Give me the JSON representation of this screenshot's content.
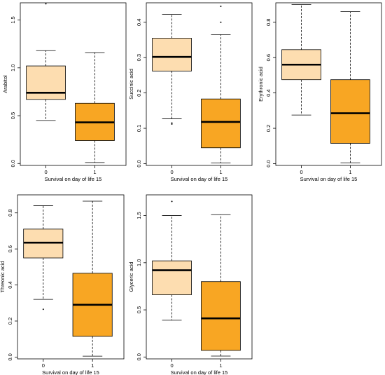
{
  "colors": {
    "group0": "#FDDDB0",
    "group1": "#F8A623",
    "stroke": "#000000"
  },
  "chart_data": [
    {
      "type": "box",
      "ylabel": "Arabitol",
      "xlabel": "Survival on day of life 15",
      "categories": [
        "0",
        "1"
      ],
      "yticks": [
        "0.0",
        "0.5",
        "1.0",
        "1.5"
      ],
      "ylim": [
        -0.02,
        1.68
      ],
      "boxes": [
        {
          "group": "0",
          "whisker_low": 0.45,
          "q1": 0.67,
          "median": 0.74,
          "q3": 1.02,
          "whisker_high": 1.18,
          "outliers": [
            1.67
          ]
        },
        {
          "group": "1",
          "whisker_low": 0.01,
          "q1": 0.24,
          "median": 0.43,
          "q3": 0.63,
          "whisker_high": 1.16,
          "outliers": []
        }
      ]
    },
    {
      "type": "box",
      "ylabel": "Succinic acid",
      "xlabel": "Survival on day of life 15",
      "categories": [
        "0",
        "1"
      ],
      "yticks": [
        "0.0",
        "0.1",
        "0.2",
        "0.3",
        "0.4"
      ],
      "ylim": [
        -0.005,
        0.455
      ],
      "boxes": [
        {
          "group": "0",
          "whisker_low": 0.127,
          "q1": 0.262,
          "median": 0.302,
          "q3": 0.355,
          "whisker_high": 0.422,
          "outliers": [
            0.115,
            0.112
          ]
        },
        {
          "group": "1",
          "whisker_low": 0.002,
          "q1": 0.045,
          "median": 0.118,
          "q3": 0.183,
          "whisker_high": 0.365,
          "outliers": [
            0.445,
            0.4
          ]
        }
      ]
    },
    {
      "type": "box",
      "ylabel": "Erythronic acid",
      "xlabel": "Survival on day of life 15",
      "categories": [
        "0",
        "1"
      ],
      "yticks": [
        "0.0",
        "0.2",
        "0.4",
        "0.6",
        "0.8"
      ],
      "ylim": [
        -0.01,
        0.91
      ],
      "boxes": [
        {
          "group": "0",
          "whisker_low": 0.275,
          "q1": 0.475,
          "median": 0.56,
          "q3": 0.645,
          "whisker_high": 0.9,
          "outliers": []
        },
        {
          "group": "1",
          "whisker_low": 0.005,
          "q1": 0.115,
          "median": 0.285,
          "q3": 0.475,
          "whisker_high": 0.86,
          "outliers": []
        }
      ]
    },
    {
      "type": "box",
      "ylabel": "Threonic acid",
      "xlabel": "Survival on day of life 15",
      "categories": [
        "0",
        "1"
      ],
      "yticks": [
        "0.0",
        "0.2",
        "0.4",
        "0.6",
        "0.8"
      ],
      "ylim": [
        -0.01,
        0.9
      ],
      "boxes": [
        {
          "group": "0",
          "whisker_low": 0.32,
          "q1": 0.55,
          "median": 0.635,
          "q3": 0.71,
          "whisker_high": 0.84,
          "outliers": [
            0.265
          ]
        },
        {
          "group": "1",
          "whisker_low": 0.005,
          "q1": 0.115,
          "median": 0.29,
          "q3": 0.465,
          "whisker_high": 0.865,
          "outliers": []
        }
      ]
    },
    {
      "type": "box",
      "ylabel": "Glyceric acid",
      "xlabel": "Survival on day of life 15",
      "categories": [
        "0",
        "1"
      ],
      "yticks": [
        "0.0",
        "0.5",
        "1.0",
        "1.5"
      ],
      "ylim": [
        -0.02,
        1.72
      ],
      "boxes": [
        {
          "group": "0",
          "whisker_low": 0.39,
          "q1": 0.66,
          "median": 0.92,
          "q3": 1.02,
          "whisker_high": 1.5,
          "outliers": [
            1.65
          ]
        },
        {
          "group": "1",
          "whisker_low": 0.01,
          "q1": 0.07,
          "median": 0.41,
          "q3": 0.8,
          "whisker_high": 1.51,
          "outliers": []
        }
      ]
    }
  ]
}
